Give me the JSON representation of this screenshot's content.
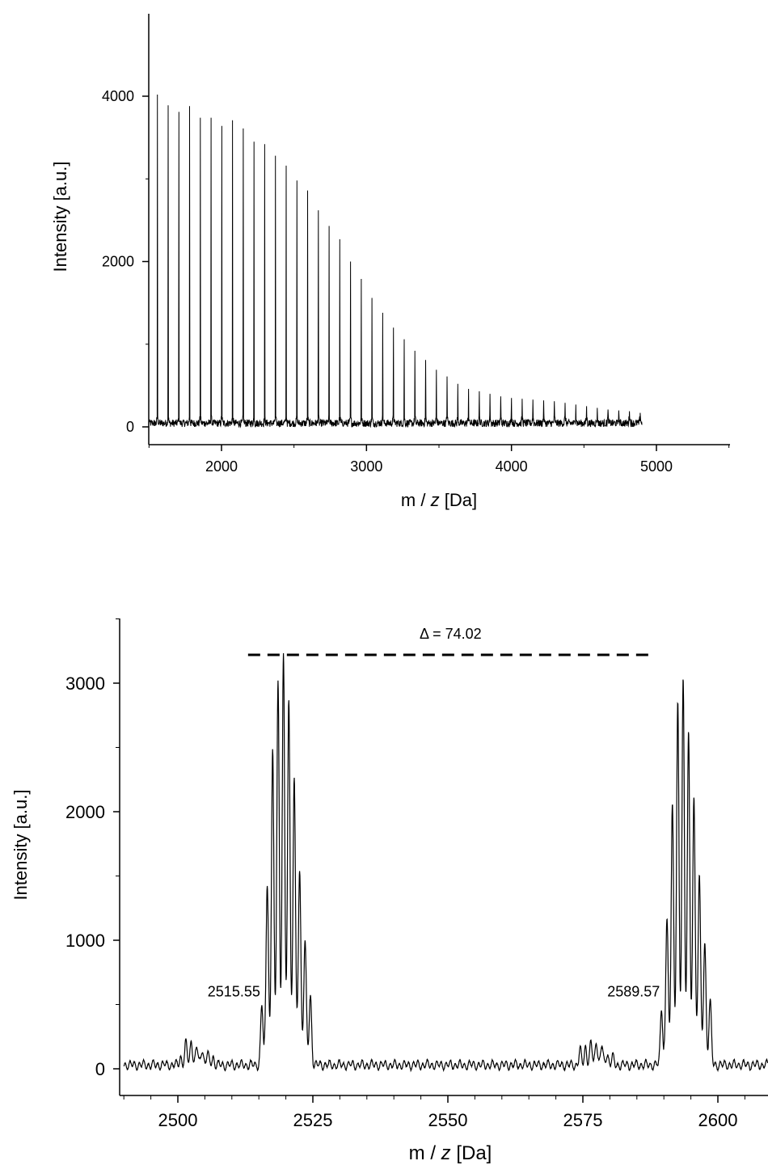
{
  "chart_data": [
    {
      "type": "line",
      "xlabel_prefix": "m / ",
      "xlabel_italic": "z",
      "xlabel_suffix": " [Da]",
      "ylabel": "Intensity [a.u.]",
      "xlim": [
        1500,
        5500
      ],
      "ylim": [
        -100,
        5000
      ],
      "xticks": [
        2000,
        3000,
        4000,
        5000
      ],
      "yticks": [
        0,
        2000,
        4000
      ],
      "grid": false,
      "series": [
        {
          "peaks": {
            "x": [
              1558,
              1632,
              1706,
              1780,
              1854,
              1928,
              2002,
              2076,
              2150,
              2224,
              2298,
              2372,
              2446,
              2520,
              2594,
              2668,
              2742,
              2816,
              2890,
              2964,
              3038,
              3112,
              3186,
              3260,
              3334,
              3408,
              3482,
              3556,
              3630,
              3704,
              3778,
              3852,
              3926,
              4000,
              4074,
              4148,
              4222,
              4296,
              4370,
              4444,
              4518,
              4592,
              4666,
              4740,
              4814,
              4888
            ],
            "y": [
              4020,
              3890,
              3810,
              3880,
              3740,
              3740,
              3640,
              3710,
              3610,
              3450,
              3420,
              3280,
              3160,
              2980,
              2860,
              2620,
              2430,
              2270,
              2000,
              1790,
              1560,
              1380,
              1200,
              1060,
              920,
              810,
              690,
              610,
              520,
              460,
              430,
              400,
              370,
              350,
              340,
              330,
              320,
              310,
              290,
              270,
              250,
              230,
              210,
              200,
              190,
              170
            ]
          }
        }
      ]
    },
    {
      "type": "line",
      "xlabel_prefix": "m / ",
      "xlabel_italic": "z",
      "xlabel_suffix": " [Da]",
      "ylabel": "Intensity [a.u.]",
      "xlim": [
        2490,
        2610
      ],
      "ylim": [
        -200,
        3500
      ],
      "xticks": [
        2500,
        2525,
        2550,
        2575,
        2600
      ],
      "yticks": [
        0,
        1000,
        2000,
        3000
      ],
      "grid": false,
      "annotations": [
        {
          "text": "2515.55",
          "x": 2515.55
        },
        {
          "text": "2589.57",
          "x": 2589.57
        },
        {
          "text": "Δ = 74.02",
          "x1": 2513,
          "x2": 2588,
          "y": 3220
        }
      ],
      "series": [
        {
          "clusters": [
            {
              "x": [
                2515.55,
                2516.55,
                2517.55,
                2518.55,
                2519.55,
                2520.55,
                2521.55,
                2522.55,
                2523.55,
                2524.55
              ],
              "y": [
                500,
                1380,
                2350,
                2830,
                2970,
                2650,
                2100,
                1450,
                930,
                560
              ]
            },
            {
              "x": [
                2589.57,
                2590.57,
                2591.57,
                2592.57,
                2593.57,
                2594.57,
                2595.57,
                2596.57,
                2597.57,
                2598.57
              ],
              "y": [
                480,
                1120,
                1980,
                2690,
                2840,
                2430,
                2000,
                1430,
                940,
                520
              ]
            },
            {
              "x": [
                2500.5,
                2501.5,
                2502.5,
                2503.5,
                2504.5,
                2505.5,
                2506.5
              ],
              "y": [
                90,
                200,
                220,
                170,
                160,
                120,
                90
              ]
            },
            {
              "x": [
                2574.5,
                2575.5,
                2576.5,
                2577.5,
                2578.5,
                2579.5,
                2580.5
              ],
              "y": [
                140,
                170,
                200,
                220,
                180,
                120,
                90
              ]
            }
          ]
        }
      ]
    }
  ]
}
